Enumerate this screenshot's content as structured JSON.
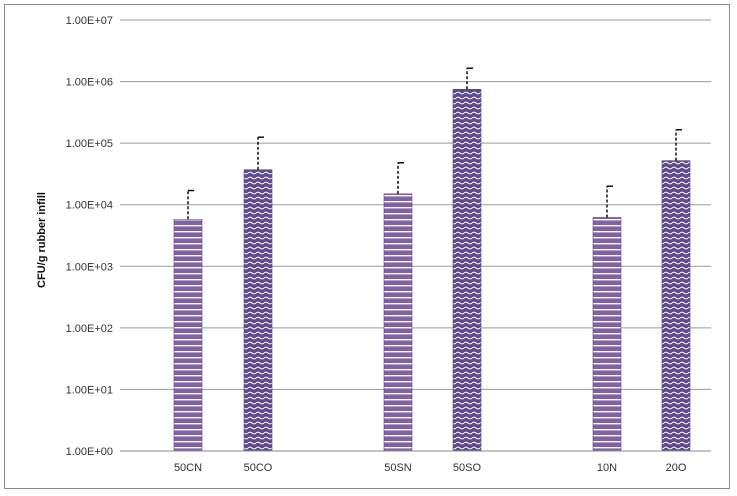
{
  "chart_data": {
    "type": "bar",
    "title": "",
    "xlabel": "",
    "ylabel": "CFU/g rubber infill",
    "yscale": "log",
    "ylim": [
      1,
      10000000
    ],
    "grid": true,
    "legend": "none",
    "yticks": [
      "1.00E+00",
      "1.00E+01",
      "1.00E+02",
      "1.00E+03",
      "1.00E+04",
      "1.00E+05",
      "1.00E+06",
      "1.00E+07"
    ],
    "categories": [
      "50CN",
      "50CO",
      "50SN",
      "50SO",
      "10N",
      "20O"
    ],
    "values": [
      5800,
      37000,
      15000,
      750000,
      6200,
      52000
    ],
    "error_upper": [
      17000,
      125000,
      48000,
      1650000,
      20000,
      165000
    ],
    "patterns": [
      "horizontal",
      "wave",
      "horizontal",
      "wave",
      "horizontal",
      "wave"
    ],
    "bar_color": "#8064a2"
  }
}
